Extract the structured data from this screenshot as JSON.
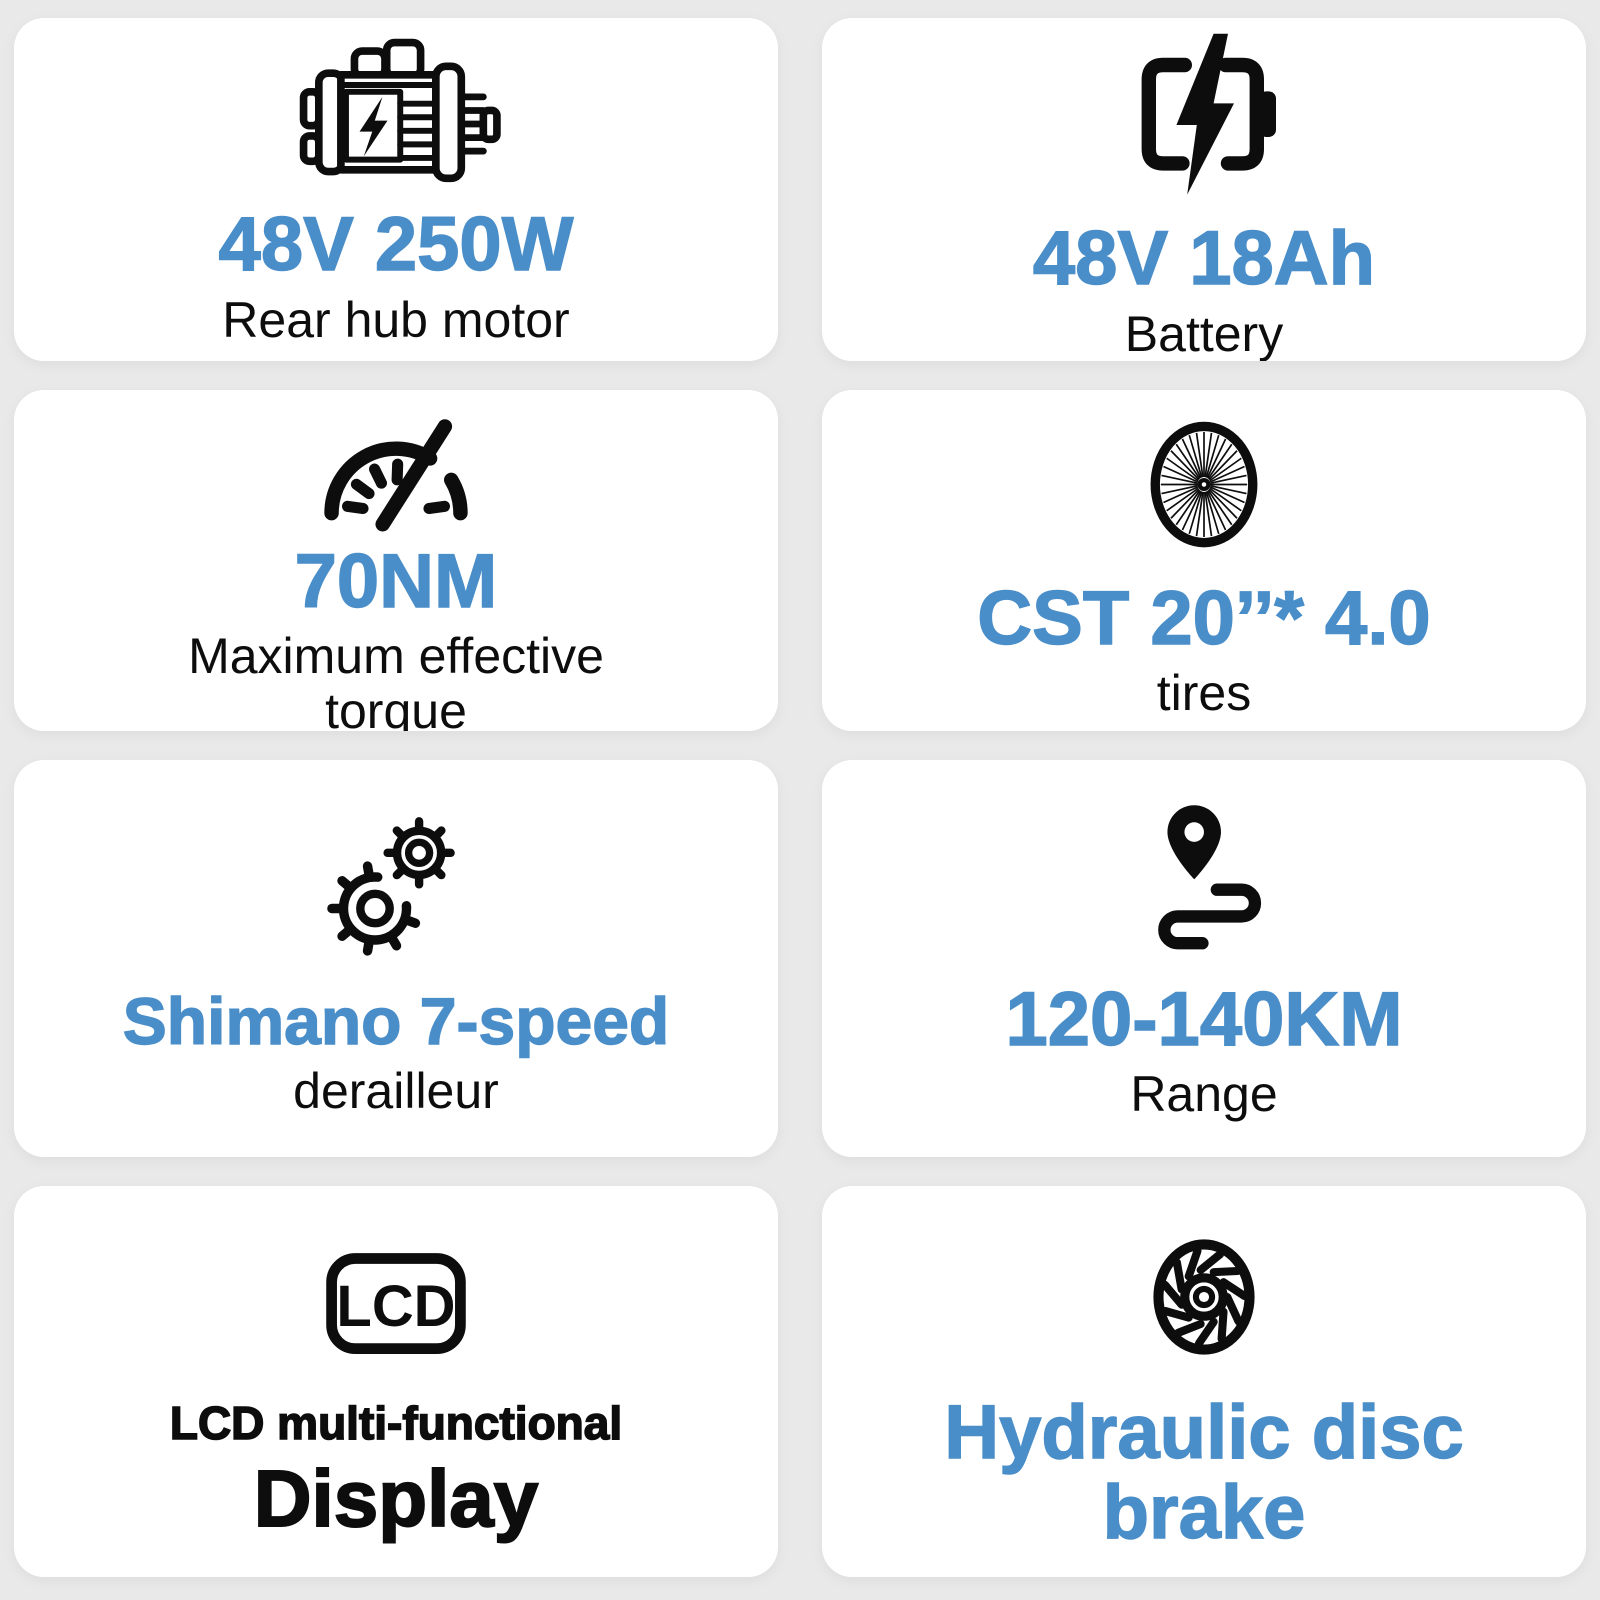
{
  "colors": {
    "accent_blue": "#4a8ec9",
    "text_black": "#0d0d0d",
    "card_background": "#ffffff",
    "page_background": "#e9e9e9"
  },
  "cards": [
    {
      "icon": "electric-motor-icon",
      "headline": "48V 250W",
      "subtitle": "Rear hub motor"
    },
    {
      "icon": "battery-charging-icon",
      "headline": "48V 18Ah",
      "subtitle": "Battery"
    },
    {
      "icon": "speedometer-icon",
      "headline": "70NM",
      "subtitle": "Maximum effective torque"
    },
    {
      "icon": "bicycle-wheel-icon",
      "headline": "CST 20’’* 4.0",
      "subtitle": "tires"
    },
    {
      "icon": "gears-icon",
      "headline": "Shimano 7-speed",
      "subtitle": "derailleur"
    },
    {
      "icon": "route-pin-icon",
      "headline": "120-140KM",
      "subtitle": "Range"
    },
    {
      "icon": "lcd-display-icon",
      "icon_label": "LCD",
      "headline": "LCD multi-functional",
      "subtitle": "Display"
    },
    {
      "icon": "hydraulic-disc-brake-icon",
      "headline": "Hydraulic disc brake",
      "subtitle": ""
    }
  ]
}
